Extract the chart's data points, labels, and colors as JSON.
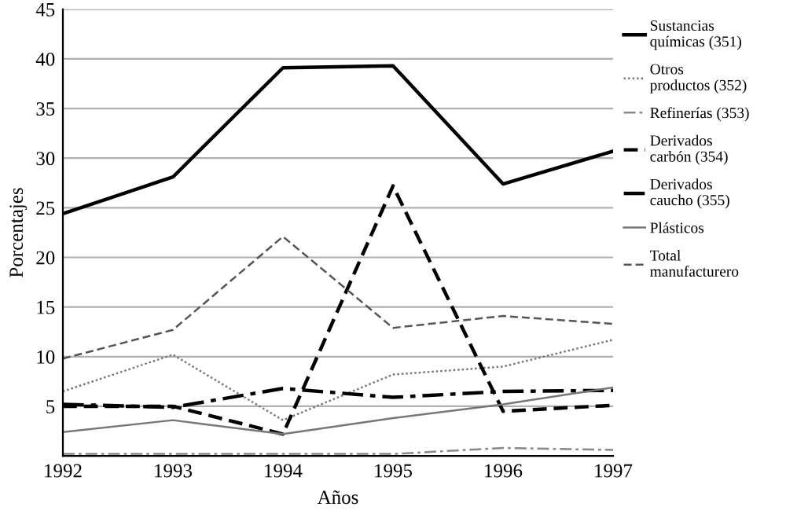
{
  "chart_data": {
    "type": "line",
    "xlabel": "Años",
    "ylabel": "Porcentajes",
    "x": [
      1992,
      1993,
      1994,
      1995,
      1996,
      1997
    ],
    "xlim": [
      1992,
      1997
    ],
    "xticks": [
      1992,
      1993,
      1994,
      1995,
      1996,
      1997
    ],
    "ylim": [
      0,
      45
    ],
    "yticks": [
      5,
      10,
      15,
      20,
      25,
      30,
      35,
      40,
      45
    ],
    "grid": "y",
    "legend": "right",
    "marker": "none",
    "series": [
      {
        "name": "Sustancias\nquímicas (351)",
        "color": "#000000",
        "line_style": "solid",
        "values": [
          24.4,
          28.1,
          39.1,
          39.3,
          27.4,
          30.7
        ]
      },
      {
        "name": "Otros\nproductos (352)",
        "color": "#777777",
        "line_style": "dotted",
        "values": [
          6.5,
          10.2,
          3.6,
          8.2,
          9.0,
          11.7
        ]
      },
      {
        "name": "Refinerías (353)",
        "color": "#888888",
        "line_style": "dashdot",
        "values": [
          0.2,
          0.2,
          0.2,
          0.2,
          0.8,
          0.6
        ]
      },
      {
        "name": "Derivados\ncarbón (354)",
        "color": "#000000",
        "line_style": "dashed",
        "values": [
          5.0,
          5.0,
          2.2,
          27.2,
          4.5,
          5.1
        ]
      },
      {
        "name": "Derivados\ncaucho (355)",
        "color": "#000000",
        "line_style": "dashdot",
        "values": [
          5.2,
          4.9,
          6.8,
          5.9,
          6.5,
          6.6
        ]
      },
      {
        "name": "Plásticos",
        "color": "#777777",
        "line_style": "solid",
        "values": [
          2.4,
          3.6,
          2.2,
          3.8,
          5.2,
          6.9
        ]
      },
      {
        "name": "Total\nmanufacturero",
        "color": "#555555",
        "line_style": "dashed",
        "values": [
          9.8,
          12.7,
          22.1,
          12.9,
          14.1,
          13.3
        ]
      }
    ]
  }
}
